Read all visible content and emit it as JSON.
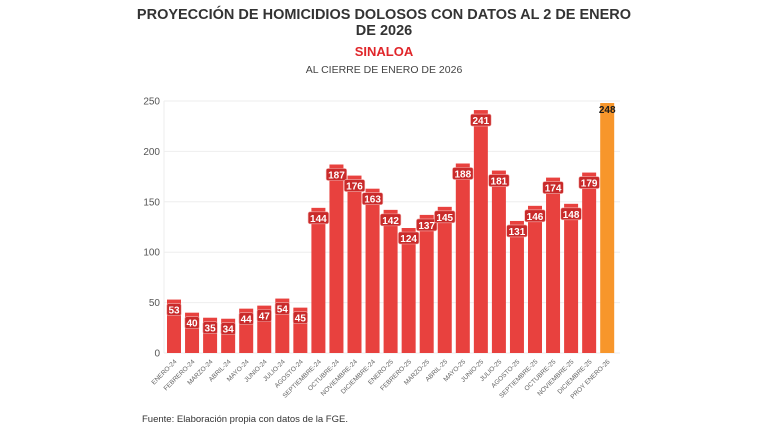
{
  "chart_data": {
    "type": "bar",
    "title_lines": [
      "PROYECCIÓN DE HOMICIDIOS DOLOSOS CON DATOS AL 2 DE ENERO",
      "DE 2026"
    ],
    "region": "SINALOA",
    "subtitle": "AL CIERRE DE ENERO DE 2026",
    "source": "Fuente: Elaboración propia con datos de la FGE.",
    "categories": [
      "ENERO-24",
      "FEBRERO-24",
      "MARZO-24",
      "ABRIL-24",
      "MAYO-24",
      "JUNIO-24",
      "JULIO-24",
      "AGOSTO-24",
      "SEPTIEMBRE-24",
      "OCTUBRE-24",
      "NOVIEMBRE-24",
      "DICIEMBRE-24",
      "ENERO-25",
      "FEBRERO-25",
      "MARZO-25",
      "ABRIL-25",
      "MAYO-25",
      "JUNIO-25",
      "JULIO-25",
      "AGOSTO-25",
      "SEPTIEMBRE-25",
      "OCTUBRE-25",
      "NOVIEMBRE-25",
      "DICIEMBRE-25",
      "PROY ENERO-26"
    ],
    "values": [
      53,
      40,
      35,
      34,
      44,
      47,
      54,
      45,
      144,
      187,
      176,
      163,
      142,
      124,
      137,
      145,
      188,
      241,
      181,
      131,
      146,
      174,
      148,
      179,
      248
    ],
    "highlight_index": 24,
    "ylim": [
      0,
      250
    ],
    "yticks": [
      "0",
      "50",
      "100",
      "150",
      "200",
      "250"
    ],
    "grid": true,
    "colors": {
      "bar": "#e8413e",
      "highlight": "#f7962b",
      "label_bg_dark": "#c92a2a"
    }
  }
}
